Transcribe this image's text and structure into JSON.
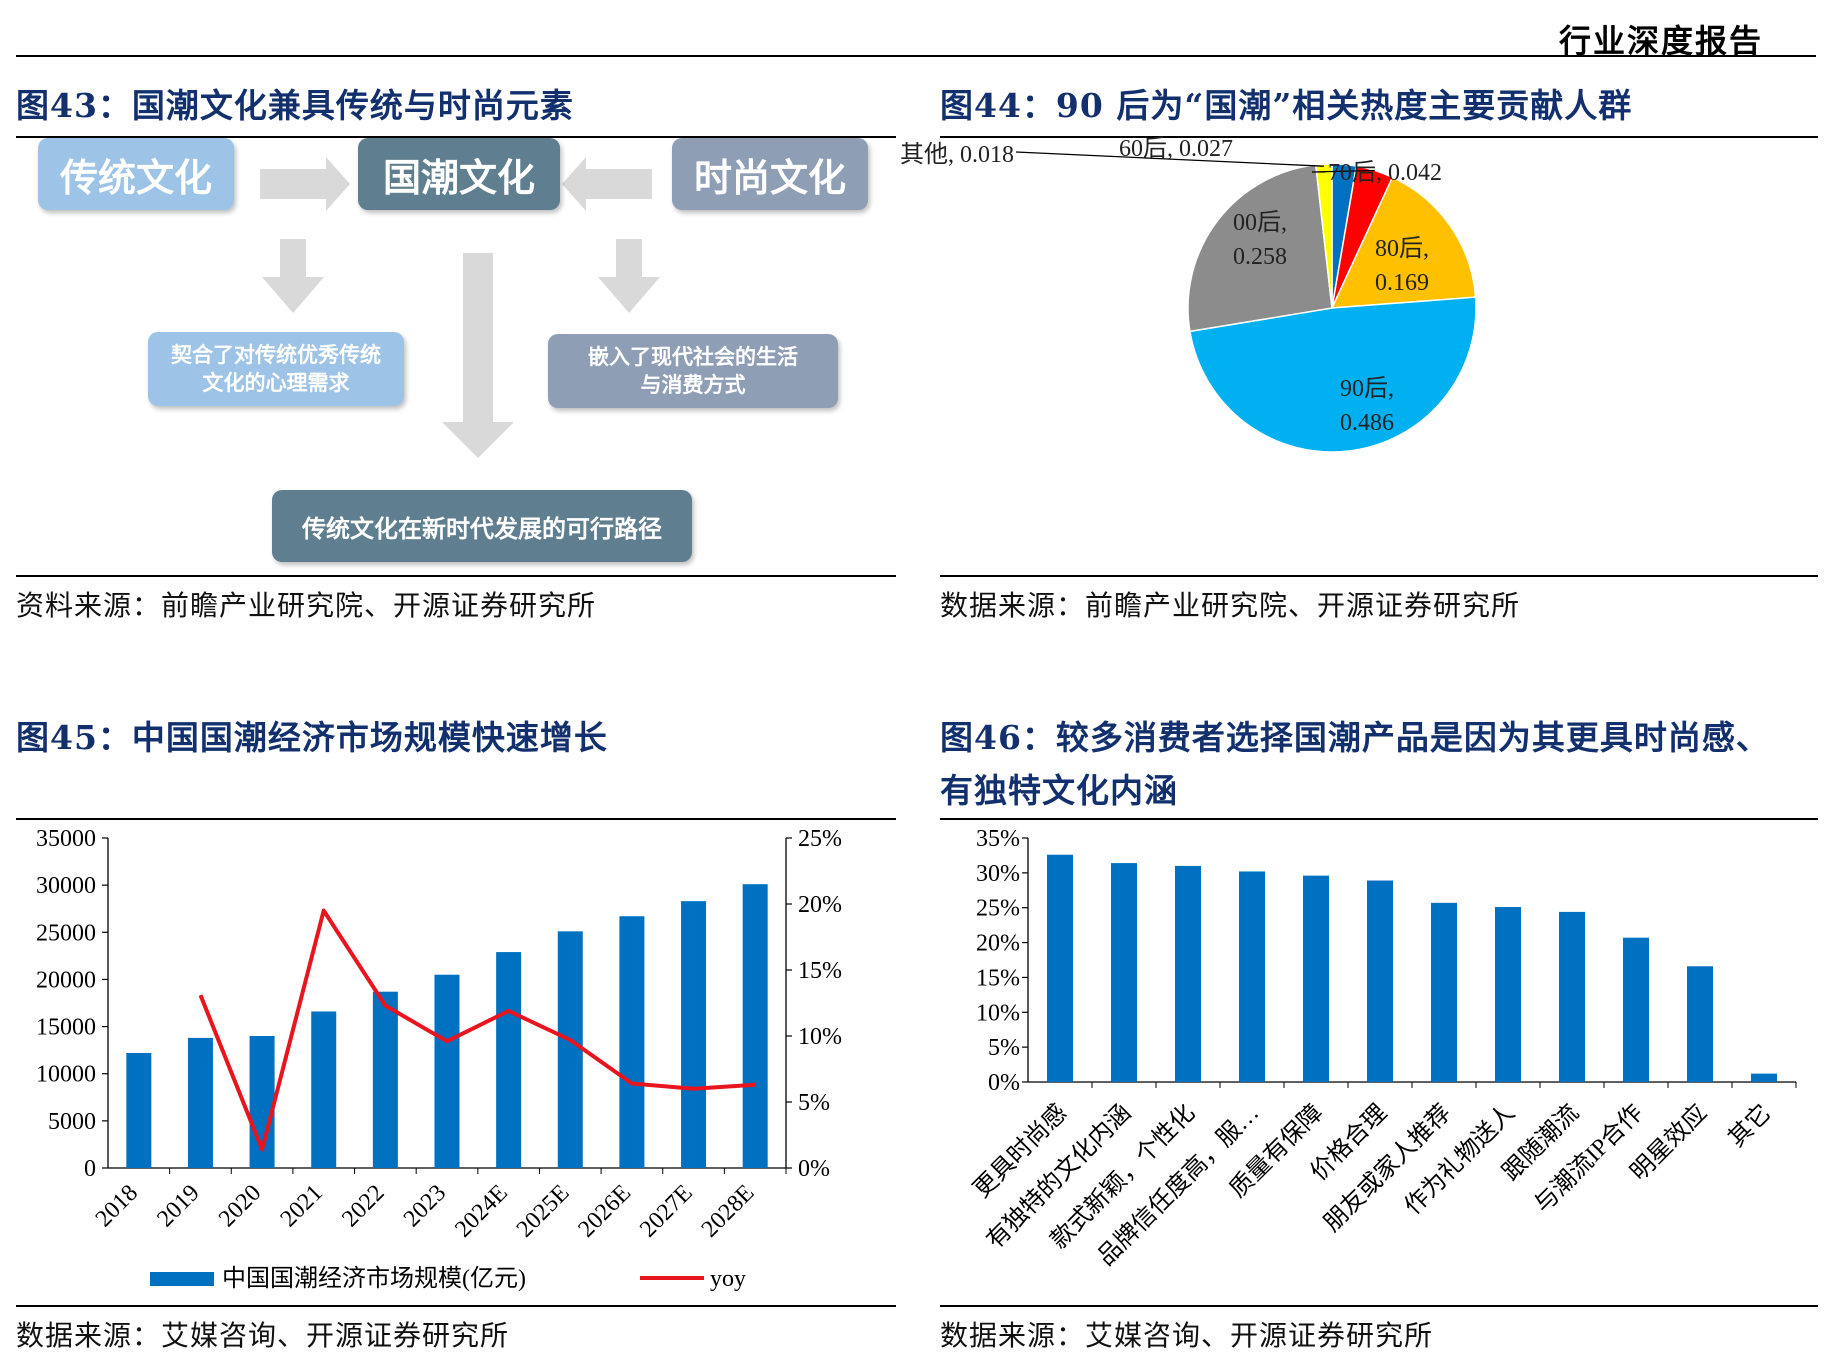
{
  "header": {
    "report_type": "行业深度报告"
  },
  "fig43": {
    "title": "图43：国潮文化兼具传统与时尚元素",
    "traditional": "传统文化",
    "guochao": "国潮文化",
    "fashion": "时尚文化",
    "left_note": "契合了对传统优秀传统文化的心理需求",
    "right_note": "嵌入了现代社会的生活与消费方式",
    "bottom": "传统文化在新时代发展的可行路径",
    "source": "资料来源：前瞻产业研究院、开源证券研究所"
  },
  "fig44": {
    "title": "图44：90 后为“国潮”相关热度主要贡献人群",
    "source": "数据来源：前瞻产业研究院、开源证券研究所"
  },
  "fig45": {
    "title": "图45：中国国潮经济市场规模快速增长",
    "source": "数据来源：艾媒咨询、开源证券研究所"
  },
  "fig46": {
    "title_line1": "图46：较多消费者选择国潮产品是因为其更具时尚感、",
    "title_line2": "有独特文化内涵",
    "source": "数据来源：艾媒咨询、开源证券研究所"
  },
  "colors": {
    "title_navy": "#13306e",
    "bar_blue": "#0070c0",
    "yoy_red": "#e8141e",
    "pie": [
      "#0070c0",
      "#ff0000",
      "#ffc000",
      "#00b0f0",
      "#8c8c8c",
      "#ffff00"
    ]
  },
  "chart_data": [
    {
      "id": "fig44",
      "type": "pie",
      "slices": [
        {
          "name": "60后",
          "label": "60后, 0.027",
          "value": 0.027,
          "color": "#0070c0"
        },
        {
          "name": "70后",
          "label": "70后, 0.042",
          "value": 0.042,
          "color": "#ff0000"
        },
        {
          "name": "80后",
          "label": [
            "80后,",
            "0.169"
          ],
          "value": 0.169,
          "color": "#ffc000"
        },
        {
          "name": "90后",
          "label": [
            "90后,",
            "0.486"
          ],
          "value": 0.486,
          "color": "#00b0f0"
        },
        {
          "name": "00后",
          "label": [
            "00后,",
            "0.258"
          ],
          "value": 0.258,
          "color": "#8c8c8c"
        },
        {
          "name": "其他",
          "label": "其他, 0.018",
          "value": 0.018,
          "color": "#ffff00"
        }
      ]
    },
    {
      "id": "fig45",
      "type": "bar",
      "categories": [
        "2018",
        "2019",
        "2020",
        "2021",
        "2022",
        "2023",
        "2024E",
        "2025E",
        "2026E",
        "2027E",
        "2028E"
      ],
      "series": [
        {
          "name": "中国国潮经济市场规模(亿元)",
          "axis": "left",
          "values": [
            12200,
            13800,
            14000,
            16600,
            18700,
            20500,
            22900,
            25100,
            26700,
            28300,
            30100
          ]
        },
        {
          "name": "yoy",
          "axis": "right",
          "kind": "line",
          "values": [
            null,
            13.1,
            1.4,
            19.5,
            12.3,
            9.6,
            11.9,
            9.7,
            6.4,
            6.0,
            6.3
          ]
        }
      ],
      "left_ticks": [
        "0",
        "5000",
        "10000",
        "15000",
        "20000",
        "25000",
        "30000",
        "35000"
      ],
      "right_ticks": [
        "0%",
        "5%",
        "10%",
        "15%",
        "20%",
        "25%"
      ],
      "ylim_left": [
        0,
        35000
      ],
      "ylim_right": [
        0,
        25
      ]
    },
    {
      "id": "fig46",
      "type": "bar",
      "categories": [
        "更具时尚感",
        "有独特的文化内涵",
        "款式新颖，个性化",
        "品牌信任度高，服…",
        "质量有保障",
        "价格合理",
        "朋友或家人推荐",
        "作为礼物送人",
        "跟随潮流",
        "与潮流IP合作",
        "明星效应",
        "其它"
      ],
      "values": [
        32.6,
        31.4,
        31.0,
        30.2,
        29.6,
        28.9,
        25.7,
        25.1,
        24.4,
        20.7,
        16.6,
        1.2
      ],
      "y_ticks": [
        "0%",
        "5%",
        "10%",
        "15%",
        "20%",
        "25%",
        "30%",
        "35%"
      ],
      "ylim": [
        0,
        35
      ]
    }
  ]
}
